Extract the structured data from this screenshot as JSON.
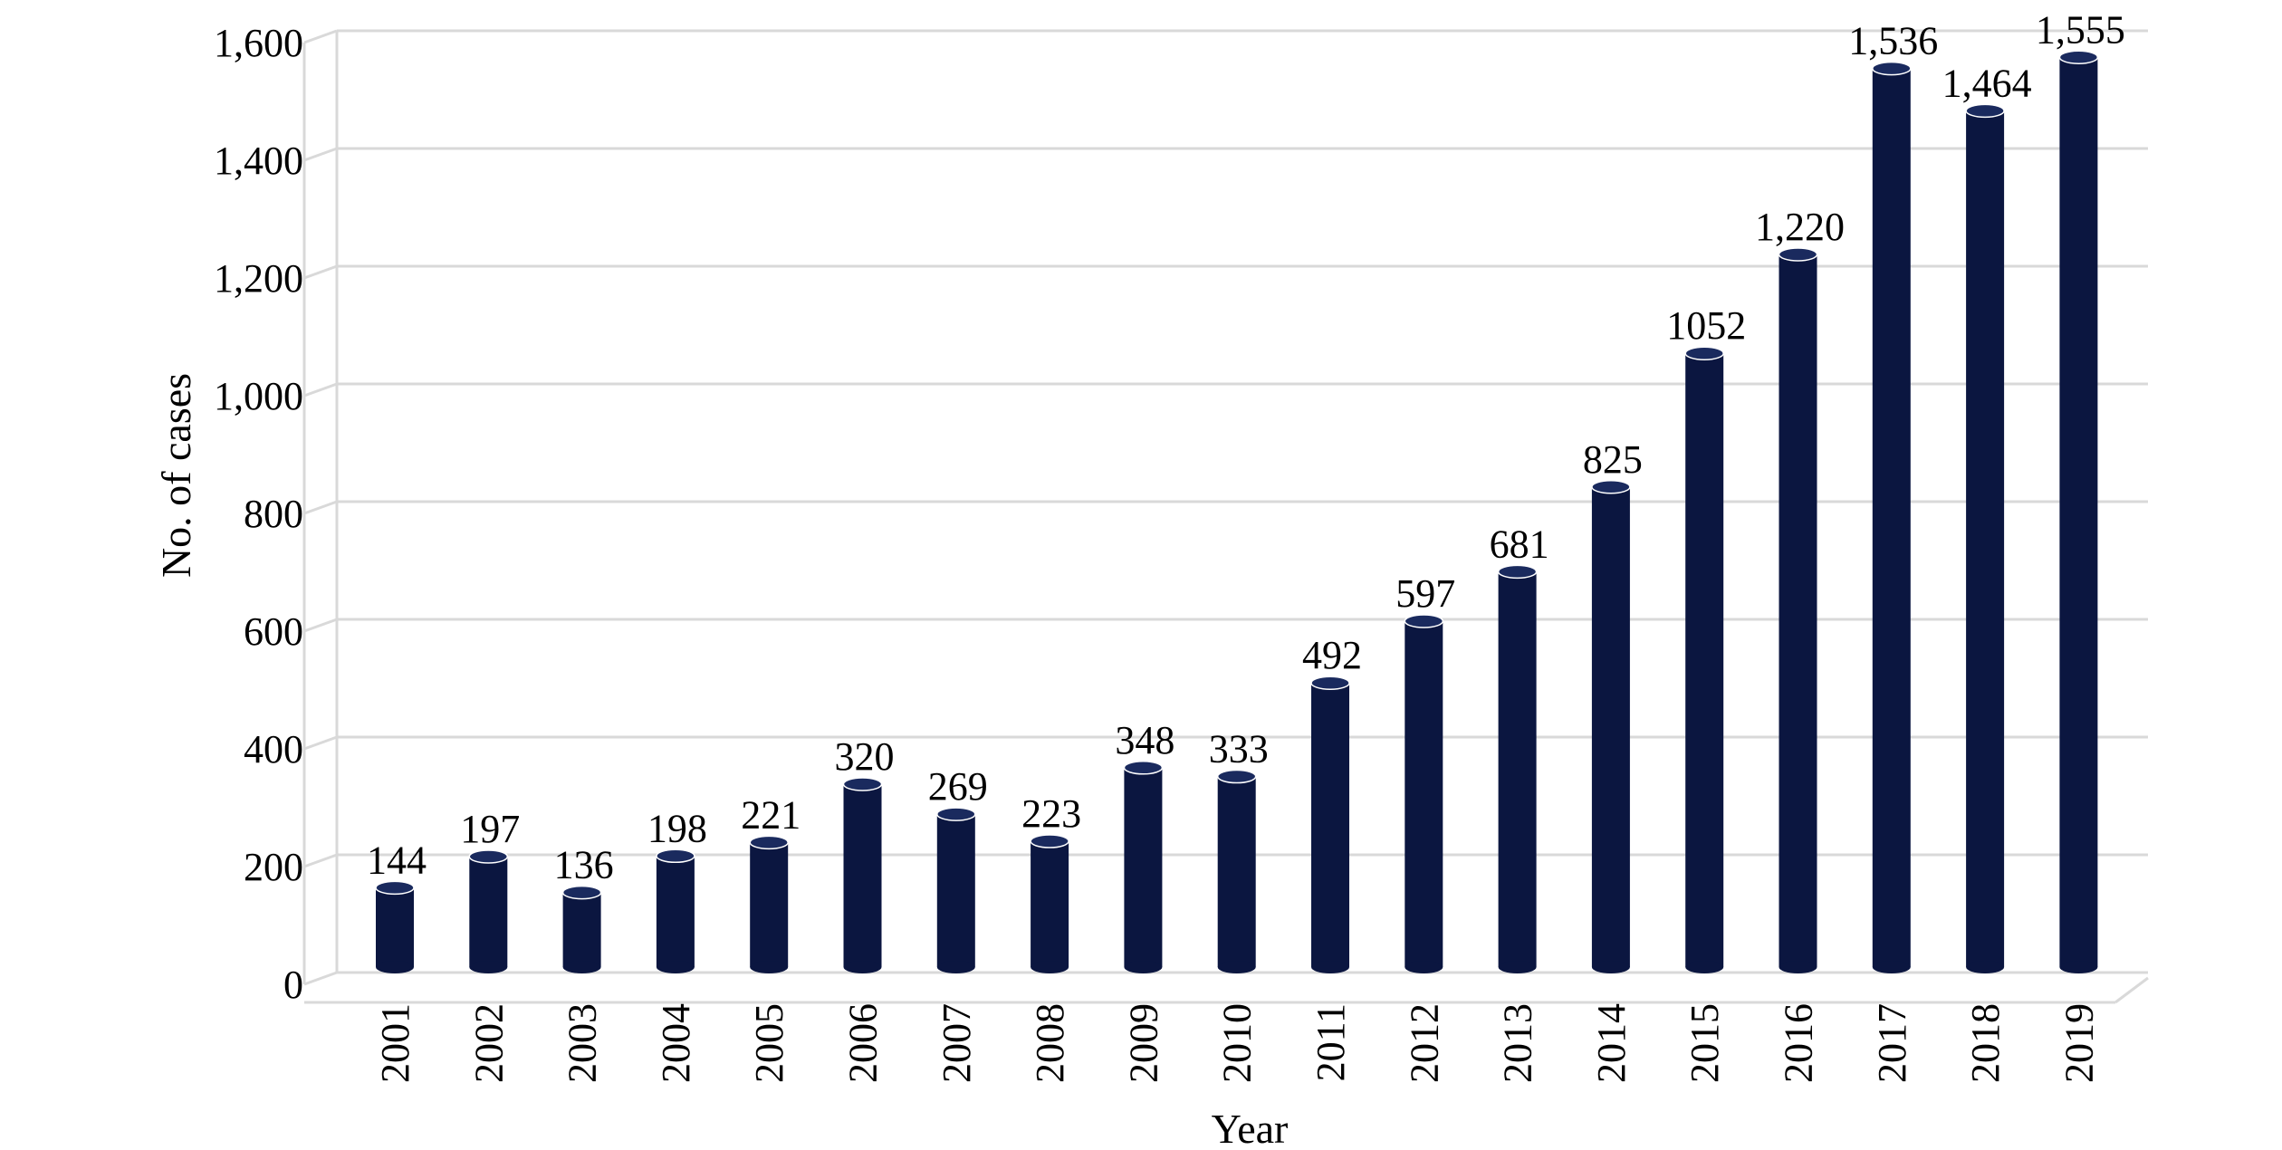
{
  "chart_data": {
    "type": "bar",
    "style": "3d-cylinder",
    "categories": [
      "2001",
      "2002",
      "2003",
      "2004",
      "2005",
      "2006",
      "2007",
      "2008",
      "2009",
      "2010",
      "2011",
      "2012",
      "2013",
      "2014",
      "2015",
      "2016",
      "2017",
      "2018",
      "2019"
    ],
    "values": [
      144,
      197,
      136,
      198,
      221,
      320,
      269,
      223,
      348,
      333,
      492,
      597,
      681,
      825,
      1052,
      1220,
      1536,
      1464,
      1555
    ],
    "data_labels": [
      "144",
      "197",
      "136",
      "198",
      "221",
      "320",
      "269",
      "223",
      "348",
      "333",
      "492",
      "597",
      "681",
      "825",
      "1052",
      "1,220",
      "1,536",
      "1,464",
      "1,555"
    ],
    "y_tick_labels": [
      "0",
      "200",
      "400",
      "600",
      "800",
      "1,000",
      "1,200",
      "1,400",
      "1,600"
    ],
    "y_ticks": [
      0,
      200,
      400,
      600,
      800,
      1000,
      1200,
      1400,
      1600
    ],
    "ylim": [
      0,
      1600
    ],
    "xlabel": "Year",
    "ylabel": "No. of cases",
    "bar_color": "#0b1640",
    "grid": true,
    "legend": "none"
  }
}
